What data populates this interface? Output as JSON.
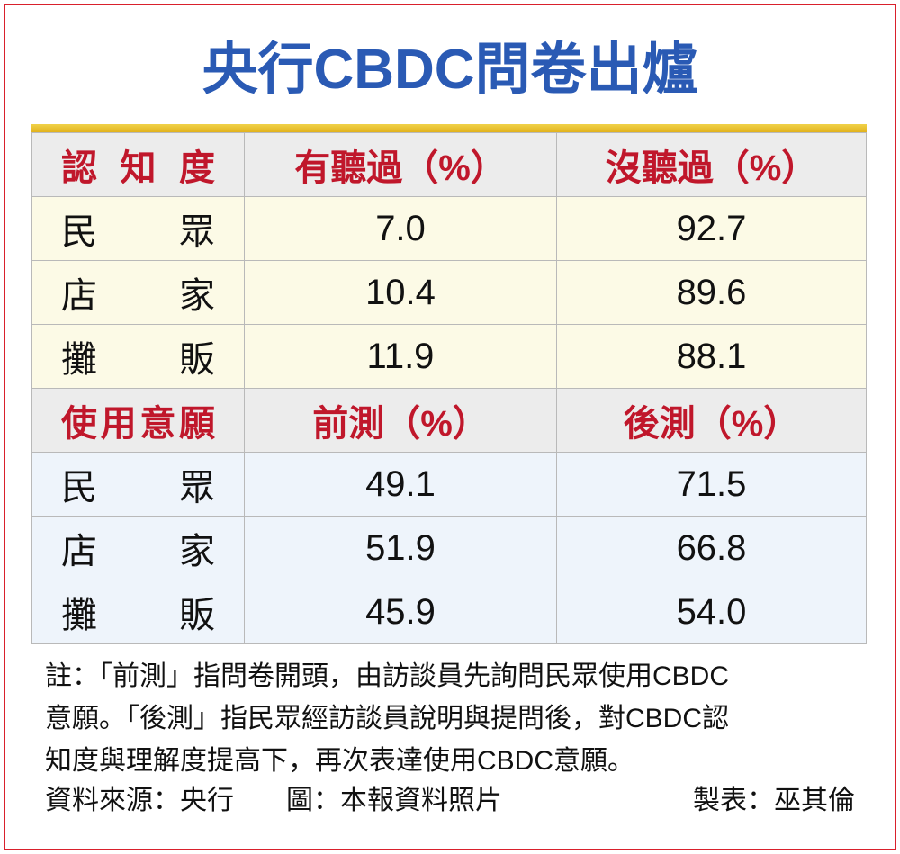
{
  "title": "央行CBDC問卷出爐",
  "table": {
    "sections": [
      {
        "header": [
          "認知度",
          "有聽過（%）",
          "沒聽過（%）"
        ],
        "rows": [
          [
            "民眾",
            "7.0",
            "92.7"
          ],
          [
            "店家",
            "10.4",
            "89.6"
          ],
          [
            "攤販",
            "11.9",
            "88.1"
          ]
        ]
      },
      {
        "header": [
          "使用意願",
          "前測（%）",
          "後測（%）"
        ],
        "rows": [
          [
            "民眾",
            "49.1",
            "71.5"
          ],
          [
            "店家",
            "51.9",
            "66.8"
          ],
          [
            "攤販",
            "45.9",
            "54.0"
          ]
        ]
      }
    ]
  },
  "note": [
    "註：「前測」指問卷開頭，由訪談員先詢問民眾使用CBDC",
    "意願。「後測」指民眾經訪談員說明與提問後，對CBDC認",
    "知度與理解度提高下，再次表達使用CBDC意願。"
  ],
  "source": [
    "資料來源：央行",
    "圖：本報資料照片",
    "製表：巫其倫"
  ]
}
